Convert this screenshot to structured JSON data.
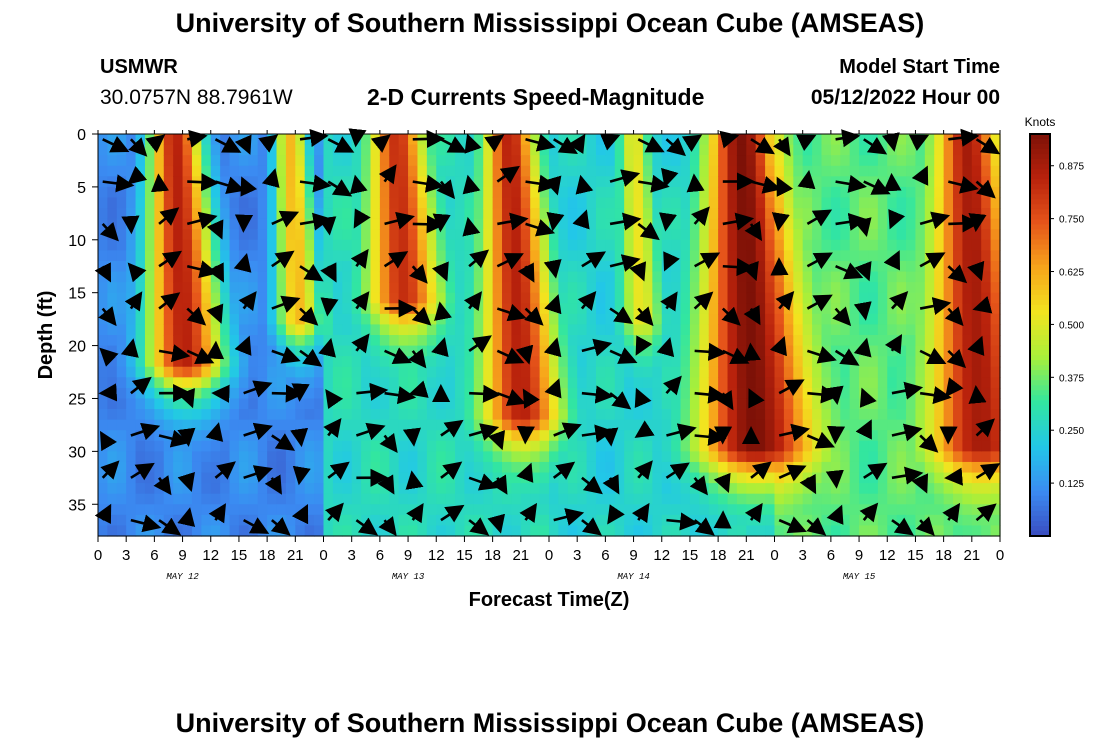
{
  "page": {
    "title": "University of Southern Mississippi Ocean Cube (AMSEAS)",
    "title_repeat": "University of Southern Mississippi Ocean Cube (AMSEAS)",
    "station": "USMWR",
    "coordinates": "30.0757N  88.7961W",
    "subtitle": "2-D Currents Speed-Magnitude",
    "model_start_label": "Model Start Time",
    "model_start_value": "05/12/2022 Hour 00"
  },
  "chart_data": {
    "type": "heatmap",
    "title": "2-D Currents Speed-Magnitude",
    "xlabel": "Forecast Time(Z)",
    "ylabel": "Depth (ft)",
    "xlim_hours": [
      0,
      96
    ],
    "ylim_ft": [
      0,
      38
    ],
    "x_tick_labels": [
      "0",
      "3",
      "6",
      "9",
      "12",
      "15",
      "18",
      "21",
      "0",
      "3",
      "6",
      "9",
      "12",
      "15",
      "18",
      "21",
      "0",
      "3",
      "6",
      "9",
      "12",
      "15",
      "18",
      "21",
      "0",
      "3",
      "6",
      "9",
      "12",
      "15",
      "18",
      "21",
      "0"
    ],
    "day_labels": [
      "MAY 12",
      "MAY 13",
      "MAY 14",
      "MAY 15"
    ],
    "y_ticks": [
      0,
      5,
      10,
      15,
      20,
      25,
      30,
      35
    ],
    "colorbar": {
      "label": "Knots",
      "ticks": [
        "0.875",
        "0.750",
        "0.625",
        "0.500",
        "0.375",
        "0.250",
        "0.125"
      ],
      "tick_values": [
        0.875,
        0.75,
        0.625,
        0.5,
        0.375,
        0.25,
        0.125
      ],
      "range": [
        0,
        0.95
      ],
      "colors": [
        "#3a4cc0",
        "#3b8bf2",
        "#22c7e8",
        "#32e6a0",
        "#a8ef3a",
        "#f2e41f",
        "#f7a51b",
        "#e6551a",
        "#b9220c",
        "#7d1107"
      ]
    },
    "speed_bands_knots": [
      {
        "center_hour": 8.2,
        "peak_speed": 0.85,
        "surface_width_h": 2.8,
        "bottom_depth_ft": 22
      },
      {
        "center_hour": 20.5,
        "peak_speed": 0.6,
        "surface_width_h": 1.8,
        "bottom_depth_ft": 18
      },
      {
        "center_hour": 31.8,
        "peak_speed": 0.82,
        "surface_width_h": 2.7,
        "bottom_depth_ft": 16
      },
      {
        "center_hour": 43.8,
        "peak_speed": 0.85,
        "surface_width_h": 2.5,
        "bottom_depth_ft": 27
      },
      {
        "center_hour": 57.0,
        "peak_speed": 0.52,
        "surface_width_h": 1.5,
        "bottom_depth_ft": 18
      },
      {
        "center_hour": 68.5,
        "peak_speed": 0.95,
        "surface_width_h": 3.5,
        "bottom_depth_ft": 30
      },
      {
        "center_hour": 92.5,
        "peak_speed": 0.88,
        "surface_width_h": 3.0,
        "bottom_depth_ft": 30
      }
    ],
    "deep_speed_knots": {
      "mid_day_1": 0.05,
      "mid_day_2": 0.22,
      "mid_day_3": 0.2,
      "mid_day_4": 0.3
    },
    "vector_grid": {
      "x_step_hours": 3,
      "depth_step_ft": 4,
      "description": "direction arrows overlaid on speed field"
    }
  }
}
